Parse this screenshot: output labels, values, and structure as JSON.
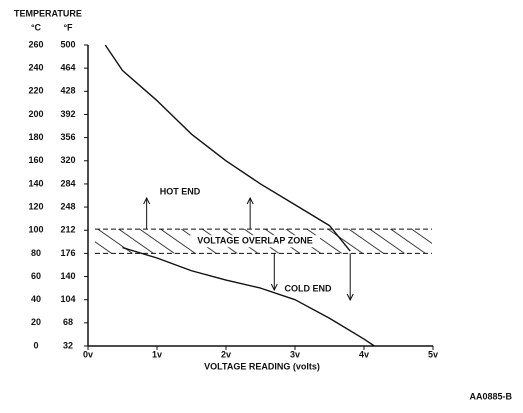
{
  "chart_data": {
    "type": "line",
    "axis_title": "TEMPERATURE",
    "y_label": "°C",
    "y2_label": "°F",
    "x_label": "VOLTAGE READING (volts)",
    "figure_id": "AA0885-B",
    "xlim": [
      0,
      5
    ],
    "xticks": [
      {
        "value": 0,
        "label": "0v"
      },
      {
        "value": 1,
        "label": "1v"
      },
      {
        "value": 2,
        "label": "2v"
      },
      {
        "value": 3,
        "label": "3v"
      },
      {
        "value": 4,
        "label": "4v"
      },
      {
        "value": 5,
        "label": "5v"
      }
    ],
    "ylim": [
      0,
      260
    ],
    "yticks": [
      0,
      20,
      40,
      60,
      80,
      100,
      120,
      140,
      160,
      180,
      200,
      220,
      240,
      260
    ],
    "y2lim": [
      32,
      500
    ],
    "y2ticks": [
      32,
      68,
      104,
      140,
      176,
      212,
      248,
      284,
      320,
      356,
      392,
      428,
      464,
      500
    ],
    "overlap_zone": {
      "label": "VOLTAGE OVERLAP ZONE",
      "range": [
        80,
        101
      ]
    },
    "color": "#111111",
    "series": [
      {
        "name": "HOT END",
        "x": [
          0.25,
          0.5,
          1,
          1.5,
          2,
          2.5,
          3,
          3.5,
          3.8
        ],
        "values": [
          260,
          238,
          212,
          183,
          160,
          140,
          122,
          104,
          82
        ]
      },
      {
        "name": "COLD END",
        "x": [
          0.5,
          1,
          1.5,
          2,
          2.5,
          3,
          3.5,
          4,
          4.15
        ],
        "values": [
          85,
          76,
          65,
          57,
          50,
          40,
          24,
          6,
          0
        ]
      }
    ]
  }
}
